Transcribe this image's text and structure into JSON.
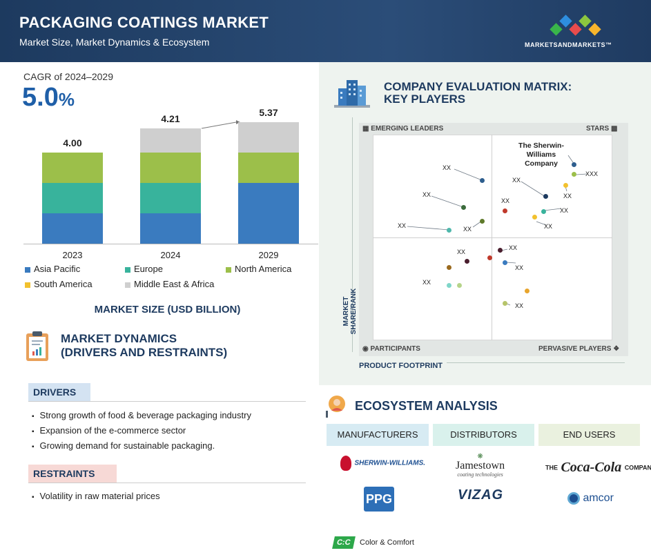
{
  "header": {
    "title": "PACKAGING COATINGS MARKET",
    "subtitle": "Market Size, Market Dynamics & Ecosystem",
    "brand": "MARKETSANDMARKETS™"
  },
  "cagr": {
    "label": "CAGR of 2024–2029",
    "value": "5.0",
    "unit": "%"
  },
  "chart_data": {
    "type": "bar",
    "stacked": true,
    "categories": [
      "2023",
      "2024",
      "2029"
    ],
    "totals": [
      "4.00",
      "4.21",
      "5.37"
    ],
    "series": [
      {
        "name": "Asia Pacific",
        "color": "#3a7bbf",
        "values": [
          1.0,
          1.0,
          2.0
        ]
      },
      {
        "name": "Europe",
        "color": "#38b39c",
        "values": [
          1.0,
          1.0,
          0.0
        ]
      },
      {
        "name": "North America",
        "color": "#9cbf4a",
        "values": [
          1.0,
          1.0,
          1.0
        ]
      },
      {
        "name": "South America",
        "color": "#f2c12e",
        "values": [
          0.0,
          0.0,
          0.0
        ]
      },
      {
        "name": "Middle East & Africa",
        "color": "#cfcfcf",
        "values": [
          0.0,
          0.8,
          1.0
        ]
      }
    ],
    "title": "MARKET SIZE (USD BILLION)"
  },
  "dynamics": {
    "title_line1": "MARKET DYNAMICS",
    "title_line2": "(DRIVERS AND RESTRAINTS)",
    "drivers_label": "DRIVERS",
    "drivers": [
      "Strong growth of food & beverage packaging industry",
      "Expansion of the e-commerce sector",
      "Growing demand for sustainable packaging."
    ],
    "restraints_label": "RESTRAINTS",
    "restraints": [
      "Volatility in raw material prices"
    ]
  },
  "matrix": {
    "title_line1": "COMPANY EVALUATION MATRIX:",
    "title_line2": "KEY PLAYERS",
    "quadrants": {
      "top_left": "EMERGING LEADERS",
      "top_right": "STARS",
      "bottom_left": "PARTICIPANTS",
      "bottom_right": "PERVASIVE PLAYERS"
    },
    "y_axis": "MARKET SHARE/RANK",
    "x_axis": "PRODUCT FOOTPRINT",
    "highlight": "The Sherwin-Williams Company",
    "placeholder": "XX",
    "placeholder_long": "XXX"
  },
  "ecosystem": {
    "title": "ECOSYSTEM ANALYSIS",
    "categories": [
      "MANUFACTURERS",
      "DISTRIBUTORS",
      "END USERS"
    ],
    "category_colors": [
      "#d7ebf3",
      "#d9f1ec",
      "#eaf1df"
    ],
    "logos": {
      "sherwin": "SHERWIN-WILLIAMS.",
      "jamestown": "Jamestown",
      "jamestown_sub": "coating technologies",
      "coke_pre": "THE",
      "coke": "Coca-Cola",
      "coke_post": "COMPANY",
      "ppg": "PPG",
      "vizag": "VIZAG",
      "amcor": "amcor",
      "cc_mark": "C:C",
      "cc": "Color & Comfort"
    }
  }
}
